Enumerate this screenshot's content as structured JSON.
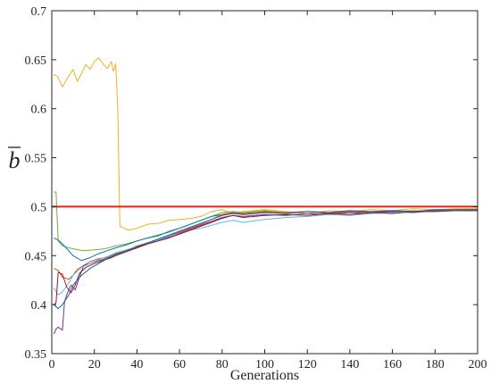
{
  "chart_data": {
    "type": "line",
    "title": "",
    "xlabel": "Generations",
    "ylabel": "b",
    "ylabel_decoration": "overbar",
    "xlim": [
      0,
      200
    ],
    "ylim": [
      0.35,
      0.7
    ],
    "xticks": [
      "0",
      "20",
      "40",
      "60",
      "80",
      "100",
      "120",
      "140",
      "160",
      "180",
      "200"
    ],
    "yticks": [
      "0.35",
      "0.4",
      "0.45",
      "0.5",
      "0.55",
      "0.6",
      "0.65",
      "0.7"
    ],
    "grid": false,
    "legend": "none",
    "reference_line": {
      "y": 0.5,
      "color": "#e8201c"
    },
    "series": [
      {
        "color": "#edb120",
        "points": [
          [
            1,
            0.635
          ],
          [
            3,
            0.632
          ],
          [
            5,
            0.622
          ],
          [
            7,
            0.63
          ],
          [
            10,
            0.64
          ],
          [
            12,
            0.628
          ],
          [
            14,
            0.636
          ],
          [
            16,
            0.645
          ],
          [
            18,
            0.64
          ],
          [
            20,
            0.648
          ],
          [
            22,
            0.652
          ],
          [
            24,
            0.646
          ],
          [
            26,
            0.641
          ],
          [
            28,
            0.648
          ],
          [
            29,
            0.638
          ],
          [
            30,
            0.646
          ],
          [
            31,
            0.6
          ],
          [
            32,
            0.48
          ],
          [
            34,
            0.478
          ],
          [
            36,
            0.476
          ],
          [
            40,
            0.478
          ],
          [
            45,
            0.482
          ],
          [
            50,
            0.483
          ],
          [
            55,
            0.486
          ],
          [
            60,
            0.487
          ],
          [
            65,
            0.488
          ],
          [
            70,
            0.49
          ],
          [
            75,
            0.495
          ],
          [
            80,
            0.497
          ],
          [
            85,
            0.493
          ],
          [
            90,
            0.495
          ],
          [
            100,
            0.497
          ],
          [
            110,
            0.495
          ],
          [
            120,
            0.493
          ],
          [
            130,
            0.496
          ],
          [
            140,
            0.495
          ],
          [
            150,
            0.497
          ],
          [
            160,
            0.496
          ],
          [
            170,
            0.498
          ],
          [
            180,
            0.497
          ],
          [
            190,
            0.498
          ],
          [
            200,
            0.498
          ]
        ]
      },
      {
        "color": "#77ac30",
        "points": [
          [
            1,
            0.515
          ],
          [
            2,
            0.515
          ],
          [
            3,
            0.465
          ],
          [
            5,
            0.46
          ],
          [
            8,
            0.458
          ],
          [
            10,
            0.457
          ],
          [
            15,
            0.455
          ],
          [
            20,
            0.456
          ],
          [
            25,
            0.457
          ],
          [
            30,
            0.46
          ],
          [
            35,
            0.462
          ],
          [
            40,
            0.465
          ],
          [
            45,
            0.468
          ],
          [
            50,
            0.47
          ],
          [
            55,
            0.475
          ],
          [
            60,
            0.478
          ],
          [
            65,
            0.482
          ],
          [
            70,
            0.486
          ],
          [
            75,
            0.49
          ],
          [
            80,
            0.494
          ],
          [
            85,
            0.495
          ],
          [
            90,
            0.494
          ],
          [
            100,
            0.496
          ],
          [
            110,
            0.494
          ],
          [
            120,
            0.495
          ],
          [
            130,
            0.494
          ],
          [
            140,
            0.496
          ],
          [
            150,
            0.494
          ],
          [
            160,
            0.495
          ],
          [
            170,
            0.496
          ],
          [
            180,
            0.495
          ],
          [
            190,
            0.497
          ],
          [
            200,
            0.497
          ]
        ]
      },
      {
        "color": "#0072bd",
        "points": [
          [
            1,
            0.468
          ],
          [
            3,
            0.466
          ],
          [
            5,
            0.462
          ],
          [
            8,
            0.455
          ],
          [
            10,
            0.45
          ],
          [
            14,
            0.445
          ],
          [
            18,
            0.448
          ],
          [
            22,
            0.452
          ],
          [
            26,
            0.455
          ],
          [
            30,
            0.458
          ],
          [
            35,
            0.461
          ],
          [
            40,
            0.465
          ],
          [
            45,
            0.468
          ],
          [
            50,
            0.471
          ],
          [
            55,
            0.474
          ],
          [
            60,
            0.478
          ],
          [
            65,
            0.482
          ],
          [
            70,
            0.486
          ],
          [
            75,
            0.49
          ],
          [
            80,
            0.492
          ],
          [
            85,
            0.494
          ],
          [
            90,
            0.492
          ],
          [
            100,
            0.494
          ],
          [
            110,
            0.493
          ],
          [
            120,
            0.495
          ],
          [
            130,
            0.494
          ],
          [
            140,
            0.495
          ],
          [
            150,
            0.494
          ],
          [
            160,
            0.496
          ],
          [
            170,
            0.495
          ],
          [
            180,
            0.496
          ],
          [
            190,
            0.496
          ],
          [
            200,
            0.496
          ]
        ]
      },
      {
        "color": "#d95319",
        "points": [
          [
            1,
            0.437
          ],
          [
            3,
            0.435
          ],
          [
            5,
            0.428
          ],
          [
            8,
            0.426
          ],
          [
            10,
            0.43
          ],
          [
            12,
            0.436
          ],
          [
            15,
            0.44
          ],
          [
            18,
            0.444
          ],
          [
            22,
            0.447
          ],
          [
            26,
            0.448
          ],
          [
            30,
            0.452
          ],
          [
            35,
            0.455
          ],
          [
            40,
            0.46
          ],
          [
            45,
            0.463
          ],
          [
            50,
            0.466
          ],
          [
            55,
            0.47
          ],
          [
            60,
            0.474
          ],
          [
            65,
            0.478
          ],
          [
            70,
            0.482
          ],
          [
            75,
            0.487
          ],
          [
            80,
            0.492
          ],
          [
            85,
            0.494
          ],
          [
            90,
            0.493
          ],
          [
            100,
            0.495
          ],
          [
            110,
            0.494
          ],
          [
            120,
            0.495
          ],
          [
            130,
            0.493
          ],
          [
            140,
            0.495
          ],
          [
            150,
            0.494
          ],
          [
            160,
            0.495
          ],
          [
            170,
            0.494
          ],
          [
            180,
            0.496
          ],
          [
            190,
            0.496
          ],
          [
            200,
            0.497
          ]
        ]
      },
      {
        "color": "#7e2f8e",
        "points": [
          [
            1,
            0.37
          ],
          [
            2,
            0.375
          ],
          [
            3,
            0.377
          ],
          [
            5,
            0.374
          ],
          [
            6,
            0.403
          ],
          [
            7,
            0.41
          ],
          [
            9,
            0.42
          ],
          [
            11,
            0.415
          ],
          [
            13,
            0.428
          ],
          [
            15,
            0.44
          ],
          [
            18,
            0.442
          ],
          [
            22,
            0.445
          ],
          [
            26,
            0.447
          ],
          [
            30,
            0.45
          ],
          [
            35,
            0.454
          ],
          [
            40,
            0.458
          ],
          [
            45,
            0.462
          ],
          [
            50,
            0.465
          ],
          [
            55,
            0.469
          ],
          [
            60,
            0.473
          ],
          [
            65,
            0.477
          ],
          [
            70,
            0.481
          ],
          [
            75,
            0.485
          ],
          [
            80,
            0.489
          ],
          [
            85,
            0.491
          ],
          [
            90,
            0.49
          ],
          [
            100,
            0.492
          ],
          [
            110,
            0.491
          ],
          [
            120,
            0.493
          ],
          [
            130,
            0.492
          ],
          [
            140,
            0.494
          ],
          [
            150,
            0.493
          ],
          [
            160,
            0.495
          ],
          [
            170,
            0.494
          ],
          [
            180,
            0.496
          ],
          [
            190,
            0.496
          ],
          [
            200,
            0.496
          ]
        ]
      },
      {
        "color": "#4dbeee",
        "points": [
          [
            1,
            0.417
          ],
          [
            3,
            0.41
          ],
          [
            5,
            0.413
          ],
          [
            8,
            0.422
          ],
          [
            10,
            0.43
          ],
          [
            14,
            0.438
          ],
          [
            18,
            0.442
          ],
          [
            22,
            0.446
          ],
          [
            26,
            0.449
          ],
          [
            30,
            0.453
          ],
          [
            35,
            0.456
          ],
          [
            40,
            0.459
          ],
          [
            45,
            0.463
          ],
          [
            50,
            0.466
          ],
          [
            55,
            0.47
          ],
          [
            60,
            0.472
          ],
          [
            65,
            0.476
          ],
          [
            70,
            0.478
          ],
          [
            75,
            0.481
          ],
          [
            80,
            0.484
          ],
          [
            85,
            0.486
          ],
          [
            90,
            0.484
          ],
          [
            100,
            0.487
          ],
          [
            110,
            0.489
          ],
          [
            120,
            0.49
          ],
          [
            130,
            0.492
          ],
          [
            140,
            0.491
          ],
          [
            150,
            0.493
          ],
          [
            160,
            0.494
          ],
          [
            170,
            0.495
          ],
          [
            180,
            0.495
          ],
          [
            190,
            0.496
          ],
          [
            200,
            0.496
          ]
        ]
      },
      {
        "color": "#a2142f",
        "points": [
          [
            1,
            0.4
          ],
          [
            2,
            0.402
          ],
          [
            3,
            0.433
          ],
          [
            4,
            0.432
          ],
          [
            5,
            0.431
          ],
          [
            7,
            0.418
          ],
          [
            9,
            0.412
          ],
          [
            11,
            0.42
          ],
          [
            13,
            0.432
          ],
          [
            16,
            0.438
          ],
          [
            20,
            0.442
          ],
          [
            24,
            0.445
          ],
          [
            28,
            0.448
          ],
          [
            32,
            0.452
          ],
          [
            36,
            0.455
          ],
          [
            40,
            0.458
          ],
          [
            45,
            0.462
          ],
          [
            50,
            0.465
          ],
          [
            55,
            0.468
          ],
          [
            60,
            0.472
          ],
          [
            65,
            0.476
          ],
          [
            70,
            0.48
          ],
          [
            75,
            0.484
          ],
          [
            80,
            0.488
          ],
          [
            85,
            0.491
          ],
          [
            90,
            0.489
          ],
          [
            100,
            0.491
          ],
          [
            110,
            0.492
          ],
          [
            120,
            0.491
          ],
          [
            130,
            0.493
          ],
          [
            140,
            0.492
          ],
          [
            150,
            0.494
          ],
          [
            160,
            0.493
          ],
          [
            170,
            0.495
          ],
          [
            180,
            0.495
          ],
          [
            190,
            0.496
          ],
          [
            200,
            0.496
          ]
        ]
      },
      {
        "color": "#0b6a8a",
        "points": [
          [
            1,
            0.4
          ],
          [
            3,
            0.396
          ],
          [
            5,
            0.4
          ],
          [
            8,
            0.41
          ],
          [
            10,
            0.42
          ],
          [
            14,
            0.43
          ],
          [
            18,
            0.437
          ],
          [
            22,
            0.442
          ],
          [
            26,
            0.447
          ],
          [
            30,
            0.451
          ],
          [
            35,
            0.455
          ],
          [
            40,
            0.459
          ],
          [
            45,
            0.463
          ],
          [
            50,
            0.467
          ],
          [
            55,
            0.471
          ],
          [
            60,
            0.475
          ],
          [
            65,
            0.479
          ],
          [
            70,
            0.483
          ],
          [
            75,
            0.487
          ],
          [
            80,
            0.491
          ],
          [
            85,
            0.493
          ],
          [
            90,
            0.492
          ],
          [
            100,
            0.494
          ],
          [
            110,
            0.493
          ],
          [
            120,
            0.495
          ],
          [
            130,
            0.494
          ],
          [
            140,
            0.496
          ],
          [
            150,
            0.495
          ],
          [
            160,
            0.496
          ],
          [
            170,
            0.495
          ],
          [
            180,
            0.497
          ],
          [
            190,
            0.497
          ],
          [
            200,
            0.497
          ]
        ]
      }
    ]
  }
}
